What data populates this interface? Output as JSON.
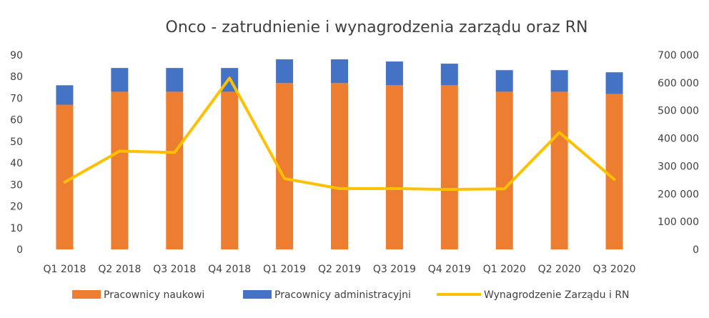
{
  "chart_data": {
    "type": "bar",
    "title": "Onco - zatrudnienie i wynagrodzenia zarządu oraz RN",
    "categories": [
      "Q1 2018",
      "Q2 2018",
      "Q3 2018",
      "Q4 2018",
      "Q1 2019",
      "Q2 2019",
      "Q3 2019",
      "Q4 2019",
      "Q1 2020",
      "Q2 2020",
      "Q3 2020"
    ],
    "stacked": true,
    "series": [
      {
        "name": "Pracownicy naukowi",
        "kind": "bar",
        "axis": "left",
        "color": "#ED7D31",
        "values": [
          67,
          73,
          73,
          73,
          77,
          77,
          76,
          76,
          73,
          73,
          72
        ]
      },
      {
        "name": "Pracownicy administracyjni",
        "kind": "bar",
        "axis": "left",
        "color": "#4472C4",
        "values": [
          9,
          11,
          11,
          11,
          11,
          11,
          11,
          10,
          10,
          10,
          10
        ]
      },
      {
        "name": "Wynagrodzenie Zarządu i RN",
        "kind": "line",
        "axis": "right",
        "color": "#FFC000",
        "values": [
          242000,
          354000,
          349000,
          617000,
          255000,
          219000,
          219000,
          216000,
          218000,
          421000,
          252000
        ]
      }
    ],
    "y_left": {
      "min": 0,
      "max": 90,
      "step": 10,
      "tick_labels": [
        "0",
        "10",
        "20",
        "30",
        "40",
        "50",
        "60",
        "70",
        "80",
        "90"
      ]
    },
    "y_right": {
      "min": 0,
      "max": 700000,
      "step": 100000,
      "tick_labels": [
        "0",
        "100 000",
        "200 000",
        "300 000",
        "400 000",
        "500 000",
        "600 000",
        "700 000"
      ]
    },
    "grid": false,
    "legend_position": "bottom"
  }
}
